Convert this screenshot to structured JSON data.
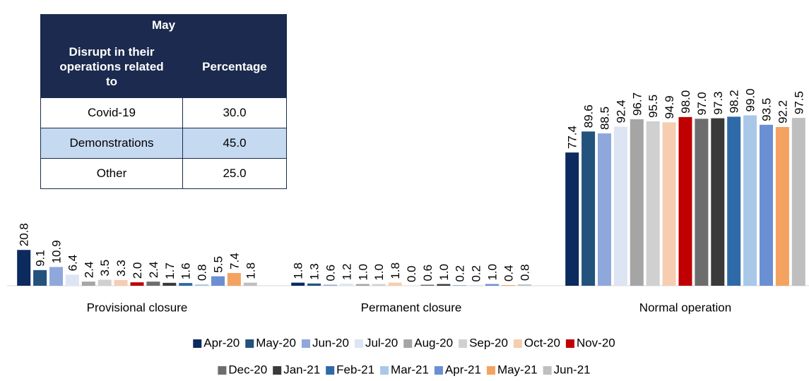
{
  "chart_data": {
    "type": "bar",
    "categories": [
      "Provisional closure",
      "Permanent closure",
      "Normal operation"
    ],
    "ylim": [
      0,
      100
    ],
    "series": [
      {
        "name": "Apr-20",
        "color": "#0b2a5e",
        "values": [
          20.8,
          1.8,
          77.4
        ],
        "value_labels": [
          "20.8",
          "1.8",
          "77.4"
        ]
      },
      {
        "name": "May-20",
        "color": "#23527c",
        "values": [
          9.1,
          1.3,
          89.6
        ],
        "value_labels": [
          "9.1",
          "1.3",
          "89.6"
        ]
      },
      {
        "name": "Jun-20",
        "color": "#8fa8dc",
        "values": [
          10.9,
          0.6,
          88.5
        ],
        "value_labels": [
          "10.9",
          "0.6",
          "88.5"
        ]
      },
      {
        "name": "Jul-20",
        "color": "#dde4f3",
        "values": [
          6.4,
          1.2,
          92.4
        ],
        "value_labels": [
          "6.4",
          "1.2",
          "92.4"
        ]
      },
      {
        "name": "Aug-20",
        "color": "#a5a5a5",
        "values": [
          2.4,
          1.0,
          96.7
        ],
        "value_labels": [
          "2.4",
          "1.0",
          "96.7"
        ]
      },
      {
        "name": "Sep-20",
        "color": "#d0d0d0",
        "values": [
          3.5,
          1.0,
          95.5
        ],
        "value_labels": [
          "3.5",
          "1.0",
          "95.5"
        ]
      },
      {
        "name": "Oct-20",
        "color": "#f6cdb0",
        "values": [
          3.3,
          1.8,
          94.9
        ],
        "value_labels": [
          "3.3",
          "1.8",
          "94.9"
        ]
      },
      {
        "name": "Nov-20",
        "color": "#c00000",
        "values": [
          2.0,
          0.0,
          98.0
        ],
        "value_labels": [
          "2.0",
          "0.0",
          "98.0"
        ]
      },
      {
        "name": "Dec-20",
        "color": "#6d6d6d",
        "values": [
          2.4,
          0.6,
          97.0
        ],
        "value_labels": [
          "2.4",
          "0.6",
          "97.0"
        ]
      },
      {
        "name": "Jan-21",
        "color": "#3a3a3a",
        "values": [
          1.7,
          1.0,
          97.3
        ],
        "value_labels": [
          "1.7",
          "1.0",
          "97.3"
        ]
      },
      {
        "name": "Feb-21",
        "color": "#2e6aa8",
        "values": [
          1.6,
          0.2,
          98.2
        ],
        "value_labels": [
          "1.6",
          "0.2",
          "98.2"
        ]
      },
      {
        "name": "Mar-21",
        "color": "#a9c8e8",
        "values": [
          0.8,
          0.2,
          99.0
        ],
        "value_labels": [
          "0.8",
          "0.2",
          "99.0"
        ]
      },
      {
        "name": "Apr-21",
        "color": "#6a8fd4",
        "values": [
          5.5,
          1.0,
          93.5
        ],
        "value_labels": [
          "5.5",
          "1.0",
          "93.5"
        ]
      },
      {
        "name": "May-21",
        "color": "#f4a260",
        "values": [
          7.4,
          0.4,
          92.2
        ],
        "value_labels": [
          "7.4",
          "0.4",
          "92.2"
        ]
      },
      {
        "name": "Jun-21",
        "color": "#bfbfbf",
        "values": [
          1.8,
          0.8,
          97.5
        ],
        "value_labels": [
          "1.8",
          "0.8",
          "97.5"
        ]
      }
    ]
  },
  "table": {
    "title": "May",
    "columns": [
      "Disrupt in their operations related to",
      "Percentage"
    ],
    "rows": [
      [
        "Covid-19",
        "30.0"
      ],
      [
        "Demonstrations",
        "45.0"
      ],
      [
        "Other",
        "25.0"
      ]
    ]
  }
}
